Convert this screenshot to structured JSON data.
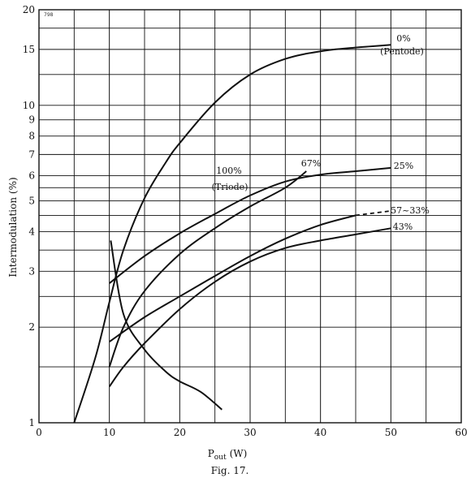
{
  "chart_data": {
    "type": "line",
    "corner_code": "798",
    "xlabel_main": "P",
    "xlabel_sub": "out",
    "xlabel_unit": "(W)",
    "ylabel": "Intermodulation (%)",
    "caption": "Fig. 17.",
    "xlim": [
      0,
      60
    ],
    "ylim": [
      1,
      20
    ],
    "yscale": "log",
    "grid": true,
    "x_ticks": [
      "0",
      "10",
      "20",
      "30",
      "40",
      "50",
      "60"
    ],
    "y_ticks": [
      "1",
      "2",
      "3",
      "4",
      "5",
      "6",
      "7",
      "8",
      "9",
      "10",
      "15",
      "20"
    ],
    "series": [
      {
        "labels": [
          "0%",
          "(Pentode)"
        ],
        "x": [
          5,
          8,
          10,
          12,
          15,
          18,
          20,
          25,
          30,
          35,
          40,
          45,
          50
        ],
        "y": [
          1.0,
          1.6,
          2.4,
          3.5,
          5.1,
          6.6,
          7.6,
          10.2,
          12.5,
          14.0,
          14.8,
          15.2,
          15.5
        ]
      },
      {
        "labels": [
          "100%",
          "(Triode)"
        ],
        "x": [
          10.2,
          12,
          15,
          18,
          20,
          23,
          26
        ],
        "y": [
          3.75,
          2.2,
          1.7,
          1.45,
          1.35,
          1.25,
          1.1
        ],
        "reference_only": true
      },
      {
        "labels": [
          "25%"
        ],
        "x": [
          10,
          15,
          20,
          25,
          30,
          35,
          40,
          45,
          50
        ],
        "y": [
          2.75,
          3.35,
          3.95,
          4.55,
          5.2,
          5.75,
          6.05,
          6.2,
          6.35
        ]
      },
      {
        "labels": [
          "67%"
        ],
        "x": [
          10,
          12,
          15,
          20,
          25,
          30,
          35,
          38
        ],
        "y": [
          1.5,
          2.0,
          2.6,
          3.4,
          4.1,
          4.8,
          5.5,
          6.2
        ]
      },
      {
        "labels": [
          "57~33%"
        ],
        "x": [
          10,
          15,
          20,
          25,
          30,
          35,
          40,
          45
        ],
        "y": [
          1.8,
          2.15,
          2.5,
          2.9,
          3.35,
          3.8,
          4.2,
          4.5
        ],
        "dashed_x": [
          45,
          50
        ],
        "dashed_y": [
          4.5,
          4.65
        ]
      },
      {
        "labels": [
          "43%"
        ],
        "x": [
          10,
          12,
          15,
          20,
          25,
          30,
          35,
          40,
          45,
          50
        ],
        "y": [
          1.3,
          1.5,
          1.78,
          2.28,
          2.78,
          3.22,
          3.55,
          3.75,
          3.92,
          4.1
        ]
      }
    ]
  }
}
